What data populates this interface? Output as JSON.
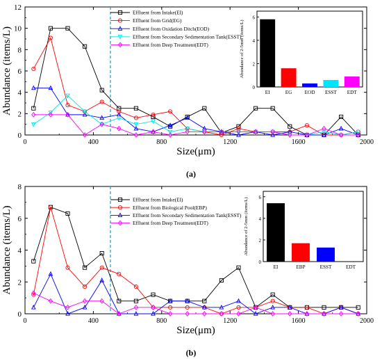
{
  "chart_data": [
    {
      "type": "line",
      "panel_label": "(a)",
      "xlabel": "Size(μm)",
      "ylabel": "Abundance (items/L)",
      "xlim": [
        0,
        2000
      ],
      "ylim": [
        0,
        12
      ],
      "xticks": [
        0,
        400,
        800,
        1200,
        1600,
        2000
      ],
      "yticks": [
        0,
        2,
        4,
        6,
        8,
        10,
        12
      ],
      "xtick_labels": [
        "0",
        "400",
        "800",
        "1200",
        "1600",
        "2000"
      ],
      "ytick_labels": [
        "0",
        "2",
        "4",
        "6",
        "8",
        "10",
        "12"
      ],
      "reference_line_x": 500,
      "legend_position": "top-center",
      "x": [
        50,
        150,
        250,
        350,
        450,
        550,
        650,
        750,
        850,
        950,
        1050,
        1150,
        1250,
        1350,
        1450,
        1550,
        1650,
        1750,
        1850,
        1950
      ],
      "series": [
        {
          "name": "Effluent from Intake(EI)",
          "color": "#000000",
          "marker": "square",
          "values": [
            2.5,
            10.0,
            10.0,
            8.3,
            4.2,
            2.5,
            2.5,
            1.7,
            0.8,
            1.7,
            2.5,
            0.2,
            0.8,
            2.5,
            2.5,
            0.8,
            0.0,
            0.0,
            1.7,
            0.0
          ]
        },
        {
          "name": "Effluent from Grid(EG)",
          "color": "#ff0000",
          "marker": "circle",
          "values": [
            6.2,
            9.1,
            2.8,
            2.2,
            3.1,
            2.2,
            1.6,
            1.9,
            2.2,
            0.6,
            0.3,
            0.0,
            0.6,
            0.3,
            0.3,
            0.3,
            0.9,
            0.0,
            0.0,
            0.3
          ]
        },
        {
          "name": "Effluent from Oxidation Ditch(EOD)",
          "color": "#0000ff",
          "marker": "triangle-up",
          "values": [
            4.4,
            4.4,
            1.9,
            1.9,
            1.6,
            1.9,
            0.6,
            0.3,
            0.9,
            1.6,
            0.6,
            0.3,
            0.0,
            0.3,
            0.0,
            0.3,
            0.0,
            0.0,
            0.6,
            0.0
          ]
        },
        {
          "name": "Effluent from Secondary Sedimentation Tank(ESST)",
          "color": "#00e5e5",
          "marker": "triangle-down",
          "values": [
            1.0,
            2.1,
            3.7,
            2.2,
            1.0,
            1.6,
            1.0,
            1.3,
            0.3,
            0.6,
            0.3,
            0.3,
            0.3,
            0.3,
            0.3,
            0.0,
            0.0,
            0.3,
            0.0,
            0.3
          ]
        },
        {
          "name": "Effluent from Deep Treatment(EDT)",
          "color": "#ff00ff",
          "marker": "diamond",
          "values": [
            1.9,
            1.9,
            1.9,
            0.0,
            1.0,
            0.6,
            0.0,
            0.3,
            0.0,
            0.3,
            0.3,
            0.3,
            0.3,
            0.3,
            0.3,
            0.0,
            0.0,
            0.6,
            0.0,
            0.0
          ]
        }
      ],
      "inset": {
        "type": "bar",
        "ylabel": "Abundance of 2-5mm (items/L)",
        "categories": [
          "EI",
          "EG",
          "EOD",
          "ESST",
          "EDT"
        ],
        "values": [
          5.8,
          1.6,
          0.3,
          0.6,
          0.9
        ],
        "colors": [
          "#000000",
          "#ff0000",
          "#0000ff",
          "#00e5ff",
          "#ff00ff"
        ],
        "ylim": [
          0,
          6.5
        ],
        "yticks": [
          0,
          2,
          4,
          6
        ],
        "ytick_labels": [
          "0",
          "2",
          "4",
          "6"
        ]
      }
    },
    {
      "type": "line",
      "panel_label": "(b)",
      "xlabel": "Size(μm)",
      "ylabel": "Abundance (items/L)",
      "xlim": [
        0,
        2000
      ],
      "ylim": [
        0,
        8
      ],
      "xticks": [
        0,
        400,
        800,
        1200,
        1600,
        2000
      ],
      "yticks": [
        0,
        2,
        4,
        6,
        8
      ],
      "xtick_labels": [
        "0",
        "400",
        "800",
        "1200",
        "1600",
        "2000"
      ],
      "ytick_labels": [
        "0",
        "2",
        "4",
        "6",
        "8"
      ],
      "reference_line_x": 500,
      "legend_position": "top-center",
      "x": [
        50,
        150,
        250,
        350,
        450,
        550,
        650,
        750,
        850,
        950,
        1050,
        1150,
        1250,
        1350,
        1450,
        1550,
        1650,
        1750,
        1850,
        1950
      ],
      "series": [
        {
          "name": "Effluent from Intake(EI)",
          "color": "#000000",
          "marker": "square",
          "values": [
            3.3,
            6.7,
            6.3,
            2.9,
            3.8,
            0.8,
            0.8,
            1.2,
            0.8,
            0.8,
            0.8,
            2.1,
            2.9,
            0.4,
            1.2,
            0.4,
            0.4,
            0.4,
            0.4,
            0.4
          ]
        },
        {
          "name": "Effluent from Biological Pool(EBP)",
          "color": "#ff0000",
          "marker": "circle",
          "values": [
            1.2,
            6.7,
            2.9,
            1.7,
            2.9,
            2.5,
            1.7,
            0.4,
            0.4,
            0.4,
            0.4,
            0.0,
            0.4,
            0.4,
            0.8,
            0.4,
            0.4,
            0.0,
            0.4,
            0.0
          ]
        },
        {
          "name": "Effluent from Secondary Sedimentation Tank(ESST)",
          "color": "#0000ff",
          "marker": "triangle-up",
          "values": [
            0.4,
            2.5,
            0.0,
            0.4,
            2.1,
            0.0,
            0.0,
            0.0,
            0.8,
            0.8,
            0.4,
            0.4,
            0.8,
            0.0,
            0.4,
            0.4,
            0.0,
            0.0,
            0.4,
            0.0
          ]
        },
        {
          "name": "Effluent from Deep Treatment(EDT)",
          "color": "#ff00ff",
          "marker": "diamond",
          "values": [
            1.3,
            0.8,
            0.4,
            0.8,
            0.8,
            0.0,
            0.4,
            0.4,
            0.0,
            0.0,
            0.0,
            0.0,
            0.0,
            0.4,
            0.0,
            0.0,
            0.0,
            0.0,
            0.0,
            0.0
          ]
        }
      ],
      "inset": {
        "type": "bar",
        "ylabel": "Abundance of 2-5mm (items/L)",
        "categories": [
          "EI",
          "EBP",
          "ESST",
          "EDT"
        ],
        "values": [
          5.4,
          1.7,
          1.3,
          0.0
        ],
        "colors": [
          "#000000",
          "#ff0000",
          "#0000ff",
          "#ff00ff"
        ],
        "ylim": [
          0,
          6.5
        ],
        "yticks": [
          0,
          2,
          4,
          6
        ],
        "ytick_labels": [
          "0",
          "2",
          "4",
          "6"
        ]
      }
    }
  ]
}
